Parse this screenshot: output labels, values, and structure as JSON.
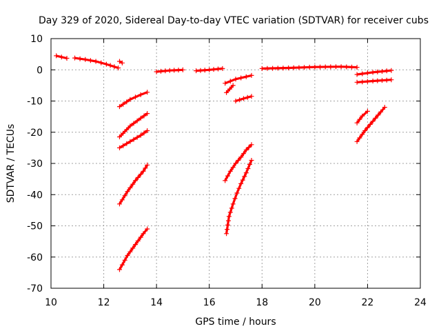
{
  "chart_data": {
    "type": "scatter",
    "title": "Day 329 of 2020, Sidereal Day-to-day VTEC variation (SDTVAR) for receiver cubs",
    "xlabel": "GPS time / hours",
    "ylabel": "SDTVAR / TECUs",
    "xlim": [
      10,
      24
    ],
    "ylim": [
      -70,
      10
    ],
    "xticks": [
      10,
      12,
      14,
      16,
      18,
      20,
      22,
      24
    ],
    "yticks": [
      10,
      0,
      -10,
      -20,
      -30,
      -40,
      -50,
      -60,
      -70
    ],
    "xtick_labels": [
      "10",
      "12",
      "14",
      "16",
      "18",
      "20",
      "22",
      "24"
    ],
    "ytick_labels": [
      "10",
      "0",
      "-10",
      "-20",
      "-30",
      "-40",
      "-50",
      "-60",
      "-70"
    ],
    "grid": true,
    "marker": "plus",
    "color": "#ff0000",
    "tracks": [
      {
        "x": [
          10.2,
          10.4,
          10.6
        ],
        "y": [
          4.5,
          4.1,
          3.7
        ]
      },
      {
        "x": [
          10.9,
          11.3,
          11.7,
          12.1,
          12.55
        ],
        "y": [
          3.8,
          3.3,
          2.7,
          1.8,
          0.6
        ]
      },
      {
        "x": [
          12.6,
          12.7
        ],
        "y": [
          2.7,
          2.2
        ]
      },
      {
        "x": [
          14.0,
          14.5,
          15.0
        ],
        "y": [
          -0.6,
          -0.2,
          0.0
        ]
      },
      {
        "x": [
          15.5,
          16.0,
          16.5
        ],
        "y": [
          -0.3,
          0.0,
          0.4
        ]
      },
      {
        "x": [
          18.0,
          19.0,
          20.0,
          21.0,
          21.6
        ],
        "y": [
          0.4,
          0.6,
          0.9,
          1.0,
          0.8
        ]
      },
      {
        "x": [
          21.6,
          22.2,
          22.9
        ],
        "y": [
          -1.5,
          -0.8,
          -0.2
        ]
      },
      {
        "x": [
          21.6,
          22.2,
          22.9
        ],
        "y": [
          -4.0,
          -3.6,
          -3.2
        ]
      },
      {
        "x": [
          16.6,
          17.0,
          17.6
        ],
        "y": [
          -4.3,
          -3.0,
          -1.8
        ]
      },
      {
        "x": [
          16.65,
          16.9
        ],
        "y": [
          -7.3,
          -5.0
        ]
      },
      {
        "x": [
          17.0,
          17.3,
          17.6
        ],
        "y": [
          -10.0,
          -9.2,
          -8.5
        ]
      },
      {
        "x": [
          12.6,
          13.0,
          13.4,
          13.65
        ],
        "y": [
          -11.8,
          -9.5,
          -8.0,
          -7.2
        ]
      },
      {
        "x": [
          12.6,
          13.0,
          13.4,
          13.65
        ],
        "y": [
          -21.5,
          -18.0,
          -15.5,
          -14.0
        ]
      },
      {
        "x": [
          12.6,
          13.0,
          13.4,
          13.65
        ],
        "y": [
          -25.0,
          -23.0,
          -21.0,
          -19.5
        ]
      },
      {
        "x": [
          12.6,
          12.9,
          13.2,
          13.5,
          13.65
        ],
        "y": [
          -43.0,
          -39.0,
          -35.5,
          -32.5,
          -30.5
        ]
      },
      {
        "x": [
          12.6,
          12.9,
          13.2,
          13.5,
          13.65
        ],
        "y": [
          -64.0,
          -59.5,
          -56.0,
          -52.5,
          -51.0
        ]
      },
      {
        "x": [
          16.6,
          16.8,
          17.0,
          17.2,
          17.4,
          17.6
        ],
        "y": [
          -35.5,
          -32.5,
          -30.0,
          -28.0,
          -25.7,
          -24.0
        ]
      },
      {
        "x": [
          16.65,
          16.75,
          16.9,
          17.05,
          17.2,
          17.4,
          17.6
        ],
        "y": [
          -52.5,
          -47.0,
          -43.0,
          -39.5,
          -36.5,
          -33.0,
          -29.0
        ]
      },
      {
        "x": [
          21.6,
          21.8,
          22.0
        ],
        "y": [
          -17.0,
          -14.8,
          -13.3
        ]
      },
      {
        "x": [
          21.6,
          21.9,
          22.2,
          22.5,
          22.65
        ],
        "y": [
          -23.0,
          -19.5,
          -16.5,
          -13.5,
          -12.0
        ]
      }
    ]
  }
}
